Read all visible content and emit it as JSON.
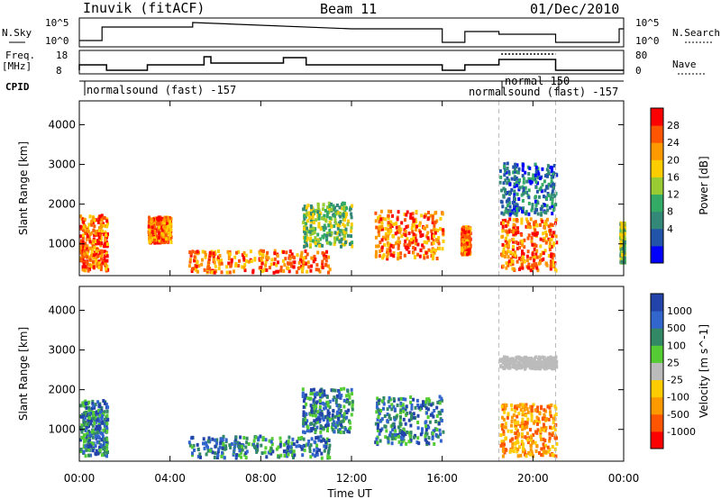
{
  "header": {
    "radar": "Inuvik (fitACF)",
    "beam": "Beam 11",
    "date": "01/Dec/2010"
  },
  "labels": {
    "nsky": "N.Sky",
    "nsky_ticks": [
      "10^5",
      "10^0"
    ],
    "nsearch": "N.Search",
    "nsearch_ticks": [
      "10^5",
      "10^0"
    ],
    "freq": "Freq.",
    "freq_unit": "[MHz]",
    "freq_ticks": [
      "18",
      "8"
    ],
    "nave": "Nave",
    "nave_ticks": [
      "80",
      "0"
    ],
    "cpid": "CPID",
    "cpid_mode1": "normalsound (fast) -157",
    "cpid_mode2": "normal 150",
    "cpid_mode3": "normalsound (fast) -157"
  },
  "chart_data": [
    {
      "type": "heatmap",
      "quantity": "Power",
      "ylabel": "Slant Range [km]",
      "ylim": [
        200,
        4600
      ],
      "yticks": [
        1000,
        2000,
        3000,
        4000
      ],
      "xlim": [
        0,
        24
      ],
      "colorbar": {
        "label": "Power [dB]",
        "ticks": [
          "28",
          "24",
          "20",
          "16",
          "12",
          "8",
          "4"
        ],
        "colors": [
          "#ff0000",
          "#ff5500",
          "#ff9900",
          "#ffcc00",
          "#99cc33",
          "#33aa66",
          "#338877",
          "#2255aa",
          "#0000ff"
        ]
      },
      "echo_regions": [
        {
          "t0": 0.0,
          "t1": 1.2,
          "r0": 300,
          "r1": 1700,
          "level": "high"
        },
        {
          "t0": 3.0,
          "t1": 4.0,
          "r0": 1000,
          "r1": 1650,
          "level": "high"
        },
        {
          "t0": 4.8,
          "t1": 11.0,
          "r0": 250,
          "r1": 800,
          "level": "high"
        },
        {
          "t0": 9.8,
          "t1": 12.0,
          "r0": 900,
          "r1": 2000,
          "level": "mid"
        },
        {
          "t0": 13.0,
          "t1": 16.0,
          "r0": 600,
          "r1": 1800,
          "level": "high"
        },
        {
          "t0": 16.8,
          "t1": 17.2,
          "r0": 700,
          "r1": 1400,
          "level": "high"
        },
        {
          "t0": 18.5,
          "t1": 21.0,
          "r0": 300,
          "r1": 1600,
          "level": "high"
        },
        {
          "t0": 18.5,
          "t1": 21.0,
          "r0": 1700,
          "r1": 3000,
          "level": "low"
        },
        {
          "t0": 23.8,
          "t1": 24.0,
          "r0": 500,
          "r1": 1500,
          "level": "mid"
        }
      ]
    },
    {
      "type": "heatmap",
      "quantity": "Velocity",
      "ylabel": "Slant Range [km]",
      "ylim": [
        200,
        4600
      ],
      "yticks": [
        1000,
        2000,
        3000,
        4000
      ],
      "xlabel": "Time UT",
      "xticks": [
        "00:00",
        "04:00",
        "08:00",
        "12:00",
        "16:00",
        "20:00",
        "00:00"
      ],
      "xlim": [
        0,
        24
      ],
      "colorbar": {
        "label": "Velocity [m s^-1]",
        "ticks": [
          "1000",
          "500",
          "100",
          "25",
          "-25",
          "-100",
          "-500",
          "-1000"
        ],
        "colors": [
          "#2244aa",
          "#3366cc",
          "#338866",
          "#55cc33",
          "#bbbbbb",
          "#ffcc00",
          "#ff9900",
          "#ff5500",
          "#ff0000"
        ]
      },
      "echo_regions": [
        {
          "t0": 0.0,
          "t1": 1.2,
          "r0": 300,
          "r1": 1700,
          "level": "pos"
        },
        {
          "t0": 4.8,
          "t1": 11.0,
          "r0": 250,
          "r1": 800,
          "level": "pos"
        },
        {
          "t0": 9.8,
          "t1": 12.0,
          "r0": 900,
          "r1": 2000,
          "level": "pos"
        },
        {
          "t0": 13.0,
          "t1": 16.0,
          "r0": 600,
          "r1": 1800,
          "level": "pos"
        },
        {
          "t0": 18.5,
          "t1": 21.0,
          "r0": 300,
          "r1": 1600,
          "level": "neg"
        },
        {
          "t0": 18.5,
          "t1": 21.0,
          "r0": 2500,
          "r1": 2800,
          "level": "zero"
        }
      ]
    }
  ],
  "colors": {
    "axis": "#000000",
    "dashed_marker": "#bbbbbb"
  }
}
